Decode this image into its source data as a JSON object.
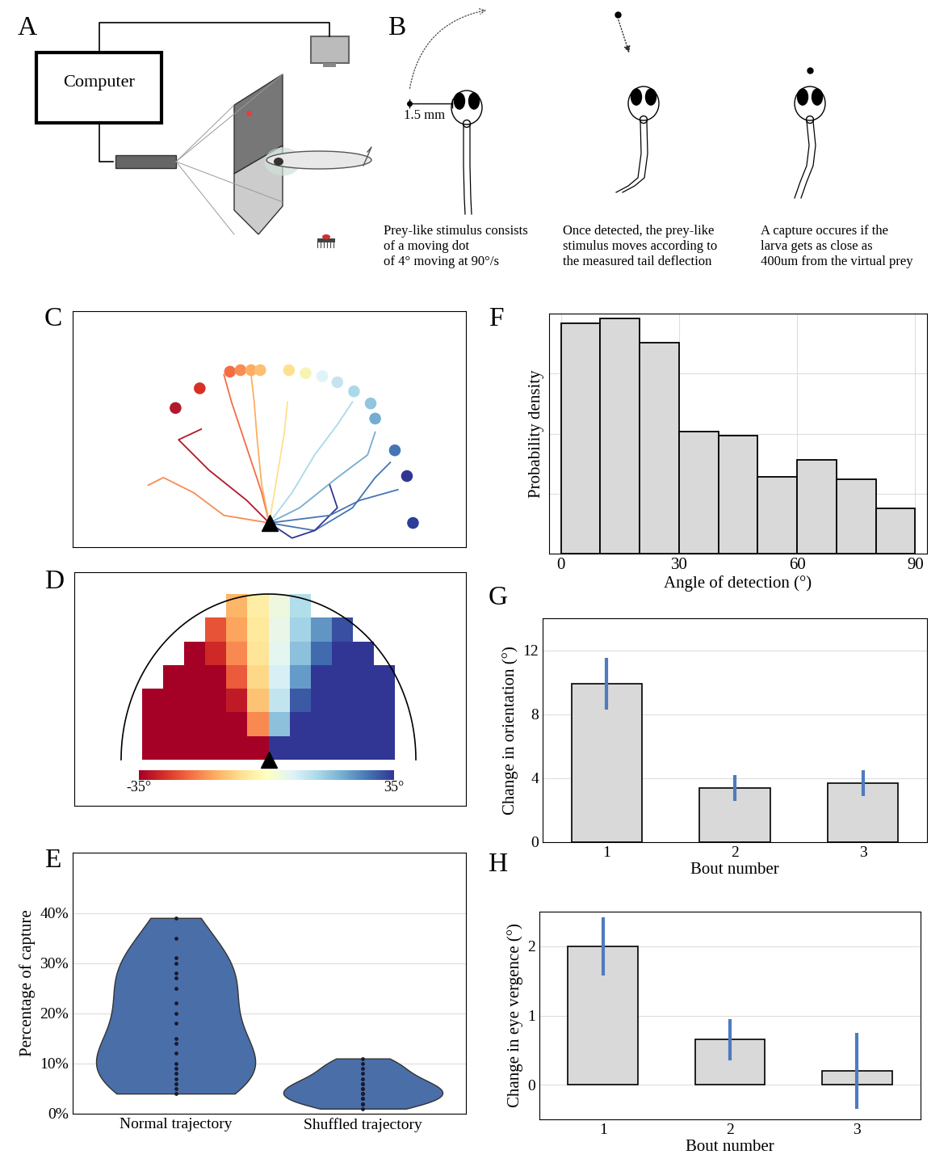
{
  "diagram": {
    "A": {
      "panel": "A",
      "computer": "Computer"
    },
    "B": {
      "panel": "B",
      "scale_bar": "1.5 mm",
      "captions": [
        "Prey-like stimulus consists\nof a moving dot\nof 4° moving at 90°/s",
        "Once detected, the prey-like\nstimulus moves according to\nthe measured tail deflection",
        "A capture occures if the\nlarva gets as close as\n400um from the virtual prey"
      ]
    }
  },
  "chart_data": [
    {
      "panel": "C",
      "type": "line",
      "xlim": [
        -1.3,
        1.3
      ],
      "ylim": [
        -0.16,
        1.4
      ],
      "tick_labels": false,
      "series": [
        {
          "color": "#b2182b",
          "x": [
            0,
            -0.15,
            -0.4,
            -0.6,
            -0.45
          ],
          "values": [
            0,
            0.15,
            0.35,
            0.55,
            0.62
          ]
        },
        {
          "color": "#f46d43",
          "x": [
            0,
            -0.05,
            -0.15,
            -0.25,
            -0.3
          ],
          "values": [
            0,
            0.2,
            0.5,
            0.8,
            0.98
          ]
        },
        {
          "color": "#fdae61",
          "x": [
            0,
            -0.05,
            -0.08,
            -0.1,
            -0.12
          ],
          "values": [
            0,
            0.25,
            0.55,
            0.8,
            0.98
          ]
        },
        {
          "color": "#f88d52",
          "x": [
            0,
            -0.3,
            -0.5,
            -0.7,
            -0.8
          ],
          "values": [
            0,
            0.05,
            0.2,
            0.3,
            0.25
          ]
        },
        {
          "color": "#fee090",
          "x": [
            0,
            0.05,
            0.1,
            0.12
          ],
          "values": [
            0,
            0.3,
            0.6,
            0.8
          ]
        },
        {
          "color": "#abd9e9",
          "x": [
            0,
            0.15,
            0.3,
            0.45,
            0.55
          ],
          "values": [
            0,
            0.2,
            0.45,
            0.65,
            0.8
          ]
        },
        {
          "color": "#74add1",
          "x": [
            0,
            0.2,
            0.45,
            0.65,
            0.7
          ],
          "values": [
            0,
            0.1,
            0.3,
            0.45,
            0.6
          ]
        },
        {
          "color": "#4575b4",
          "x": [
            0,
            0.3,
            0.55,
            0.7,
            0.8
          ],
          "values": [
            0,
            -0.05,
            0.1,
            0.3,
            0.4
          ]
        },
        {
          "color": "#313695",
          "x": [
            0,
            0.15,
            0.3,
            0.45,
            0.4
          ],
          "values": [
            0,
            -0.1,
            -0.05,
            0.1,
            0.25
          ]
        },
        {
          "color": "#4575b4",
          "x": [
            0,
            0.4,
            0.6,
            0.85
          ],
          "values": [
            0,
            0.05,
            0.15,
            0.22
          ]
        },
        {
          "type": "scatter",
          "x": [
            -0.62,
            -0.46,
            -0.26,
            -0.19,
            -0.12,
            -0.06,
            0.13,
            0.24,
            0.35,
            0.45,
            0.56,
            0.67,
            0.7,
            0.83,
            0.91,
            0.95
          ],
          "values": [
            0.76,
            0.89,
            1.0,
            1.01,
            1.01,
            1.01,
            1.01,
            0.99,
            0.97,
            0.93,
            0.87,
            0.79,
            0.69,
            0.48,
            0.31,
            0.0
          ],
          "colors": [
            "#b2182b",
            "#d73027",
            "#f46d43",
            "#f88d52",
            "#fdae61",
            "#fdbf71",
            "#fee090",
            "#f7f3b5",
            "#e0f3f8",
            "#c6e4ef",
            "#abd9e9",
            "#92c5de",
            "#74add1",
            "#4575b4",
            "#313695",
            "#2c3e99"
          ]
        }
      ]
    },
    {
      "panel": "D",
      "type": "heatmap",
      "xlim": [
        -1,
        1
      ],
      "ylim": [
        0,
        1
      ],
      "tick_labels": false,
      "cells": [
        [
          null,
          -35,
          -35,
          -35,
          -35,
          -35,
          -35,
          35,
          35,
          35,
          35,
          35,
          35,
          null
        ],
        [
          null,
          -35,
          -35,
          -35,
          -35,
          -35,
          -18,
          18,
          35,
          35,
          35,
          35,
          35,
          null
        ],
        [
          null,
          -35,
          -35,
          -35,
          -35,
          -31,
          -11,
          11,
          31,
          35,
          35,
          35,
          35,
          null
        ],
        [
          null,
          null,
          -35,
          -35,
          -35,
          -23,
          -8,
          8,
          23,
          35,
          35,
          35,
          35,
          null
        ],
        [
          null,
          null,
          null,
          -35,
          -29,
          -18,
          -6,
          6,
          18,
          29,
          35,
          35,
          null,
          null
        ],
        [
          null,
          null,
          null,
          null,
          -24,
          -15,
          -5,
          5,
          15,
          24,
          32,
          null,
          null,
          null
        ],
        [
          null,
          null,
          null,
          null,
          null,
          -13,
          -4,
          4,
          13,
          null,
          null,
          null,
          null,
          null
        ]
      ],
      "colorbar_range": [
        -35,
        35
      ],
      "colorbar_ticks": [
        {
          "value": -35,
          "label": "-35°"
        },
        {
          "value": 35,
          "label": "35°"
        }
      ]
    },
    {
      "panel": "E",
      "type": "violin",
      "categories": [
        "Normal trajectory",
        "Shuffled trajectory"
      ],
      "values": [
        [
          4,
          5,
          6,
          7,
          8,
          9,
          10,
          12,
          14,
          15,
          18,
          20,
          22,
          25,
          27,
          28,
          30,
          31,
          35,
          39
        ],
        [
          1,
          2,
          2,
          3,
          3,
          4,
          4,
          5,
          5,
          6,
          6,
          7,
          8,
          9,
          10,
          11
        ]
      ],
      "color": "#4a6ea8",
      "ylabel": "Percentage of capture",
      "ylim": [
        0,
        52
      ],
      "yticks": [
        {
          "value": 0,
          "label": "0%"
        },
        {
          "value": 10,
          "label": "10%"
        },
        {
          "value": 20,
          "label": "20%"
        },
        {
          "value": 30,
          "label": "30%"
        },
        {
          "value": 40,
          "label": "40%"
        }
      ],
      "grid": true
    },
    {
      "panel": "F",
      "type": "histogram",
      "bins": [
        0,
        10,
        20,
        30,
        40,
        50,
        60,
        70,
        80,
        90
      ],
      "values": [
        0.96,
        0.98,
        0.88,
        0.51,
        0.49,
        0.32,
        0.39,
        0.31,
        0.19
      ],
      "color": "#d9d9d9",
      "xlabel": "Angle of detection (°)",
      "ylabel": "Probability density",
      "xlim": [
        -3,
        93
      ],
      "ylim": [
        0,
        1
      ],
      "xticks": [
        0,
        30,
        60,
        90
      ],
      "yticks": [
        0,
        0.25,
        0.5,
        0.75,
        1
      ],
      "grid": true,
      "tick_labels": "x"
    },
    {
      "panel": "G",
      "type": "bar",
      "categories": [
        "1",
        "2",
        "3"
      ],
      "values": [
        9.9,
        3.4,
        3.7
      ],
      "errors": [
        1.6,
        0.8,
        0.8
      ],
      "color": "#d9d9d9",
      "xlabel": "Bout number",
      "ylabel": "Change in orientation (°)",
      "ylim": [
        0,
        14
      ],
      "yticks": [
        0,
        4,
        8,
        12
      ],
      "grid": true
    },
    {
      "panel": "H",
      "type": "bar",
      "categories": [
        "1",
        "2",
        "3"
      ],
      "values": [
        2.0,
        0.65,
        0.2
      ],
      "errors": [
        0.42,
        0.3,
        0.55
      ],
      "color": "#d9d9d9",
      "xlabel": "Bout number",
      "ylabel": "Change in eye vergence (°)",
      "ylim": [
        -0.5,
        2.5
      ],
      "yticks": [
        0,
        1,
        2
      ],
      "grid": true
    }
  ]
}
